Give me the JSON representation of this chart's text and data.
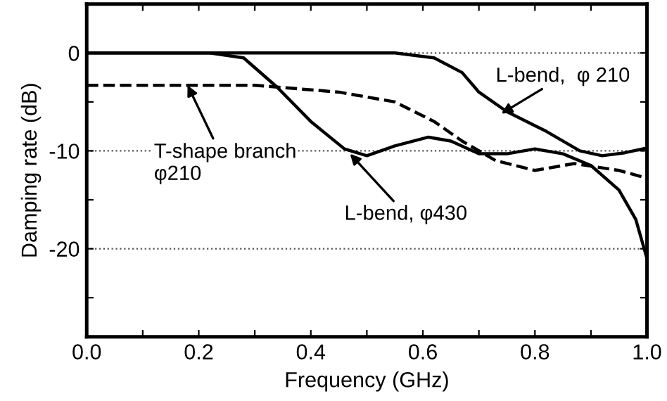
{
  "chart_data": {
    "type": "line",
    "xlabel": "Frequency (GHz)",
    "ylabel": "Damping rate (dB)",
    "xlim": [
      0.0,
      1.0
    ],
    "ylim": [
      -29,
      5
    ],
    "xticks": [
      {
        "value": 0.0,
        "label": "0.0"
      },
      {
        "value": 0.1,
        "label": null
      },
      {
        "value": 0.2,
        "label": "0.2"
      },
      {
        "value": 0.3,
        "label": null
      },
      {
        "value": 0.4,
        "label": "0.4"
      },
      {
        "value": 0.5,
        "label": null
      },
      {
        "value": 0.6,
        "label": "0.6"
      },
      {
        "value": 0.7,
        "label": null
      },
      {
        "value": 0.8,
        "label": "0.8"
      },
      {
        "value": 0.9,
        "label": null
      },
      {
        "value": 1.0,
        "label": "1.0"
      }
    ],
    "yticks": [
      {
        "value": -25,
        "label": null
      },
      -20,
      {
        "value": -15,
        "label": null
      },
      -10,
      {
        "value": -5,
        "label": null
      },
      0
    ],
    "grid": "y",
    "marker": "none",
    "legend": false,
    "series": [
      {
        "color": "#000000",
        "line_style": "solid",
        "x": [
          0,
          0.3,
          0.5,
          0.55,
          0.62,
          0.67,
          0.7,
          0.75,
          0.82,
          0.88,
          0.92,
          0.96,
          1.0
        ],
        "values": [
          0,
          0,
          0,
          0,
          -0.5,
          -2,
          -4,
          -6,
          -8,
          -10,
          -10.5,
          -10.2,
          -9.7
        ]
      },
      {
        "color": "#000000",
        "line_style": "solid",
        "x": [
          0,
          0.22,
          0.28,
          0.34,
          0.4,
          0.46,
          0.5,
          0.55,
          0.61,
          0.65,
          0.7,
          0.75,
          0.8,
          0.85,
          0.9,
          0.95,
          0.98,
          1.0
        ],
        "values": [
          0,
          0,
          -0.5,
          -3.5,
          -7,
          -9.8,
          -10.5,
          -9.5,
          -8.6,
          -9,
          -10.3,
          -10.3,
          -9.8,
          -10.3,
          -11.5,
          -14,
          -17,
          -21
        ]
      },
      {
        "color": "#000000",
        "line_style": "dashed",
        "x": [
          0,
          0.3,
          0.45,
          0.55,
          0.62,
          0.67,
          0.73,
          0.8,
          0.87,
          0.95,
          1.0
        ],
        "values": [
          -3.3,
          -3.3,
          -4,
          -5,
          -7,
          -9,
          -11,
          -12,
          -11.3,
          -12,
          -12.8
        ]
      }
    ],
    "annotations": [
      {
        "text": "L-bend,  φ 210",
        "x": 0.74,
        "y": -6.2
      },
      {
        "text": "T-shape branch\nφ210",
        "x": 0.18,
        "y": -3.3
      },
      {
        "text": "L-bend, φ430",
        "x": 0.47,
        "y": -10.3
      }
    ]
  }
}
